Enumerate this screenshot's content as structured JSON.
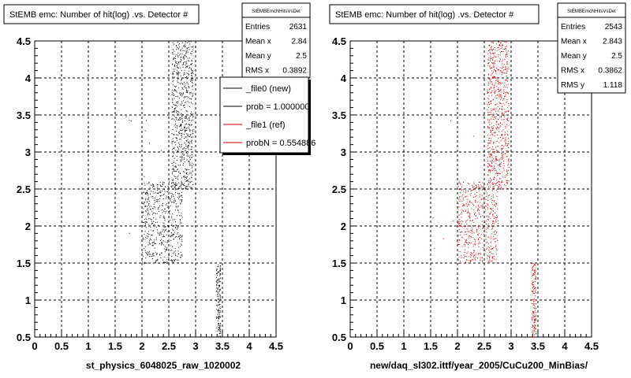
{
  "chart_data": [
    {
      "type": "scatter",
      "title": "StEMB emc: Number of hit(log) .vs. Detector #",
      "xlabel": "st_physics_6048025_raw_1020002",
      "ylabel": "",
      "xlim": [
        0,
        4.5
      ],
      "ylim": [
        0.5,
        4.5
      ],
      "x_ticks": [
        "0",
        "0.5",
        "1",
        "1.5",
        "2",
        "2.5",
        "3",
        "3.5",
        "4",
        "4.5"
      ],
      "y_ticks": [
        "0.5",
        "1",
        "1.5",
        "2",
        "2.5",
        "3",
        "3.5",
        "4",
        "4.5"
      ],
      "grid": true,
      "color": "#000000",
      "stats": {
        "name": "StEMBEmcNHitsVsDet",
        "rows": [
          {
            "label": "Entries",
            "value": "2631"
          },
          {
            "label": "Mean x",
            "value": "2.84"
          },
          {
            "label": "Mean y",
            "value": "2.5"
          },
          {
            "label": "RMS x",
            "value": "0.3892"
          }
        ]
      },
      "legend": {
        "position": "top-right",
        "entries": [
          {
            "label": "_file0 (new)",
            "color": "#000000"
          },
          {
            "label": "prob = 1.000000",
            "color": "#000000"
          },
          {
            "label": "_file1 (ref)",
            "color": "#cc0000"
          },
          {
            "label": "probN = 0.554886",
            "color": "#cc0000"
          }
        ]
      },
      "clusters": [
        {
          "x": [
            2.55,
            2.95
          ],
          "y": [
            2.5,
            4.5
          ],
          "n": 700
        },
        {
          "x": [
            2.0,
            2.75
          ],
          "y": [
            1.5,
            2.6
          ],
          "n": 520
        },
        {
          "x": [
            3.38,
            3.46
          ],
          "y": [
            0.5,
            1.5
          ],
          "n": 150
        }
      ]
    },
    {
      "type": "scatter",
      "title": "StEMB emc: Number of hit(log) .vs. Detector #",
      "xlabel": "new/daq_sl302.ittf/year_2005/CuCu200_MinBias/",
      "ylabel": "",
      "xlim": [
        0,
        4.5
      ],
      "ylim": [
        0.5,
        4.5
      ],
      "x_ticks": [
        "0",
        "0.5",
        "1",
        "1.5",
        "2",
        "2.5",
        "3",
        "3.5",
        "4",
        "4.5"
      ],
      "y_ticks": [
        "0.5",
        "1",
        "1.5",
        "2",
        "2.5",
        "3",
        "3.5",
        "4",
        "4.5"
      ],
      "grid": true,
      "color": "#cc0000",
      "stats": {
        "name": "StEMBEmcNHitsVsDet",
        "rows": [
          {
            "label": "Entries",
            "value": "2543"
          },
          {
            "label": "Mean x",
            "value": "2.843"
          },
          {
            "label": "Mean y",
            "value": "2.5"
          },
          {
            "label": "RMS x",
            "value": "0.3862"
          },
          {
            "label": "RMS y",
            "value": "1.118"
          }
        ]
      },
      "clusters": [
        {
          "x": [
            2.55,
            2.95
          ],
          "y": [
            2.5,
            4.5
          ],
          "n": 700
        },
        {
          "x": [
            2.0,
            2.75
          ],
          "y": [
            1.5,
            2.6
          ],
          "n": 520
        },
        {
          "x": [
            3.38,
            3.46
          ],
          "y": [
            0.5,
            1.5
          ],
          "n": 150
        }
      ]
    }
  ]
}
